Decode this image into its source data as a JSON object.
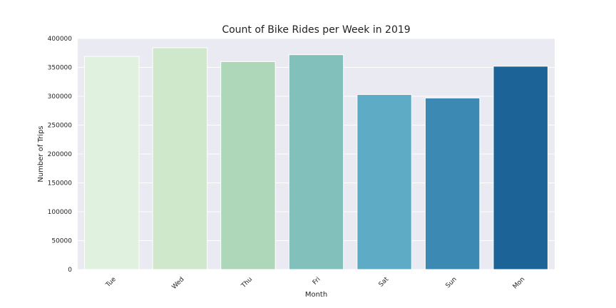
{
  "chart_data": {
    "type": "bar",
    "title": "Count of Bike Rides per Week in 2019",
    "xlabel": "Month",
    "ylabel": "Number of Trips",
    "categories": [
      "Tue",
      "Wed",
      "Thu",
      "Fri",
      "Sat",
      "Sun",
      "Mon"
    ],
    "values": [
      369000,
      384000,
      360000,
      372000,
      303000,
      297000,
      352000
    ],
    "ylim": [
      0,
      400000
    ],
    "yticks": [
      "0",
      "50000",
      "100000",
      "150000",
      "200000",
      "250000",
      "300000",
      "350000",
      "400000"
    ],
    "colors": [
      "#e0f2df",
      "#cfe8cb",
      "#add7b8",
      "#82c0bc",
      "#5eabc5",
      "#3c89b3",
      "#1c6497"
    ],
    "plot_background": "#eaeaf2",
    "grid": true,
    "legend": false
  }
}
